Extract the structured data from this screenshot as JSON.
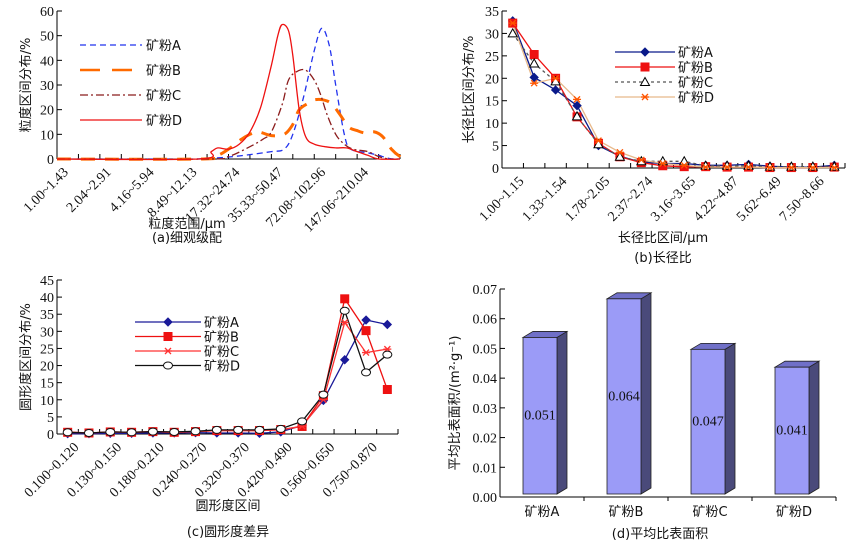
{
  "chart_data": [
    {
      "id": "a",
      "type": "line",
      "title": "",
      "caption": "(a)细观级配",
      "xlabel": "粒度范围/μm",
      "ylabel": "粒度区间分布/%",
      "ylim": [
        0,
        60
      ],
      "yticks": [
        0,
        10,
        20,
        30,
        40,
        50,
        60
      ],
      "x_tick_count": 16,
      "x_tick_labels": [
        "1.00~1.43",
        "2.04~2.91",
        "4.16~5.94",
        "8.49~12.13",
        "17.32~24.74",
        "35.33~50.47",
        "72.08~102.96",
        "147.06~210.04"
      ],
      "x_tick_label_every": 2,
      "legend_position": "top-left",
      "series": [
        {
          "name": "矿粉A",
          "color": "#2233ee",
          "style": "dashed",
          "points": [
            [
              0,
              0
            ],
            [
              6,
              0
            ],
            [
              7,
              0.2
            ],
            [
              8,
              0.8
            ],
            [
              9,
              1.8
            ],
            [
              10,
              3
            ],
            [
              10.6,
              4
            ],
            [
              11,
              10
            ],
            [
              11.5,
              25
            ],
            [
              12,
              44
            ],
            [
              12.35,
              53
            ],
            [
              12.7,
              46
            ],
            [
              13,
              30
            ],
            [
              13.4,
              10
            ],
            [
              13.7,
              4
            ],
            [
              14.5,
              2.5
            ],
            [
              15,
              1.5
            ],
            [
              15.5,
              0.2
            ],
            [
              16,
              0
            ]
          ]
        },
        {
          "name": "矿粉B",
          "color": "#ff6a00",
          "style": "longdash",
          "points": [
            [
              0,
              0
            ],
            [
              6.8,
              0
            ],
            [
              7.5,
              1.5
            ],
            [
              8,
              4
            ],
            [
              8.6,
              8
            ],
            [
              9,
              10
            ],
            [
              9.4,
              11
            ],
            [
              10,
              9.5
            ],
            [
              10.6,
              10
            ],
            [
              11,
              14
            ],
            [
              11.3,
              20
            ],
            [
              11.8,
              23
            ],
            [
              12,
              24
            ],
            [
              12.4,
              24
            ],
            [
              12.8,
              22.5
            ],
            [
              13.2,
              18
            ],
            [
              13.6,
              13
            ],
            [
              14,
              11.5
            ],
            [
              14.4,
              10.5
            ],
            [
              14.8,
              11
            ],
            [
              15.2,
              9
            ],
            [
              15.6,
              4
            ],
            [
              16,
              1
            ],
            [
              16.3,
              0
            ]
          ]
        },
        {
          "name": "矿粉C",
          "color": "#8b1c1c",
          "style": "dashdot",
          "points": [
            [
              0,
              0
            ],
            [
              7,
              0
            ],
            [
              8,
              1
            ],
            [
              9,
              5
            ],
            [
              9.6,
              8
            ],
            [
              10,
              11
            ],
            [
              10.5,
              22
            ],
            [
              10.8,
              32
            ],
            [
              11.2,
              35.5
            ],
            [
              11.6,
              36
            ],
            [
              12,
              32
            ],
            [
              12.3,
              26
            ],
            [
              12.6,
              18
            ],
            [
              13,
              10
            ],
            [
              13.4,
              6
            ],
            [
              13.8,
              4
            ],
            [
              14.5,
              3
            ],
            [
              15,
              1
            ],
            [
              15.5,
              0
            ],
            [
              16,
              0
            ]
          ]
        },
        {
          "name": "矿粉D",
          "color": "#ee1111",
          "style": "solid",
          "points": [
            [
              0,
              0
            ],
            [
              6.6,
              0
            ],
            [
              7.2,
              3
            ],
            [
              7.5,
              4.5
            ],
            [
              8,
              4
            ],
            [
              8.5,
              6
            ],
            [
              9,
              11
            ],
            [
              9.5,
              21
            ],
            [
              10,
              38
            ],
            [
              10.3,
              50
            ],
            [
              10.5,
              54.5
            ],
            [
              10.8,
              52
            ],
            [
              11,
              42
            ],
            [
              11.3,
              20
            ],
            [
              11.6,
              9
            ],
            [
              12,
              6
            ],
            [
              12.5,
              5
            ],
            [
              13,
              4.5
            ],
            [
              13.5,
              4.5
            ],
            [
              14,
              3
            ],
            [
              14.5,
              1.5
            ],
            [
              15,
              0
            ],
            [
              16,
              0
            ]
          ]
        }
      ]
    },
    {
      "id": "b",
      "type": "line",
      "title": "",
      "caption": "(b)长径比",
      "xlabel": "长径比区间/μm",
      "ylabel": "长径比区间分布/%",
      "ylim": [
        0,
        35
      ],
      "yticks": [
        0,
        5,
        10,
        15,
        20,
        25,
        30,
        35
      ],
      "x_tick_labels": [
        "1.00~1.15",
        "1.33~1.54",
        "1.78~2.05",
        "2.37~2.74",
        "3.16~3.65",
        "4.22~4.87",
        "5.62~6.49",
        "7.50~8.66"
      ],
      "x_tick_label_every": 2,
      "legend_position": "top-right",
      "series": [
        {
          "name": "矿粉A",
          "color": "#0a1a8a",
          "marker": "diamond",
          "dash": "",
          "values": [
            32.8,
            20.2,
            17.4,
            13.9,
            5.0,
            2.6,
            1.3,
            1.0,
            1.0,
            0.6,
            0.6,
            0.8,
            0.4,
            0.2,
            0.2,
            0.6
          ]
        },
        {
          "name": "矿粉B",
          "color": "#ee1111",
          "marker": "square",
          "dash": "",
          "values": [
            32.3,
            25.3,
            20.0,
            11.4,
            5.5,
            2.5,
            1.2,
            0.5,
            0.3,
            0.3,
            0.2,
            0.2,
            0.1,
            0.1,
            0.1,
            0.2
          ]
        },
        {
          "name": "矿粉C",
          "color": "#555555",
          "marker": "triangle",
          "dash": "3,3",
          "values": [
            30.0,
            23.3,
            19.3,
            11.5,
            5.3,
            2.5,
            1.5,
            1.5,
            1.5,
            0.5,
            0.5,
            0.5,
            0.3,
            0.3,
            0.3,
            0.3
          ]
        },
        {
          "name": "矿粉D",
          "color": "#e8b98a",
          "marker": "star",
          "markerColor": "#ff5500",
          "dash": "",
          "values": [
            32.3,
            18.9,
            20.0,
            15.3,
            6.1,
            3.5,
            1.8,
            1.0,
            0.6,
            0.2,
            0.2,
            0.2,
            0.1,
            0.1,
            0.1,
            0.1
          ]
        }
      ]
    },
    {
      "id": "c",
      "type": "line",
      "title": "",
      "caption": "(c)圆形度差异",
      "xlabel": "圆形度区间",
      "ylabel": "圆形度区间分布/%",
      "ylim": [
        0,
        45
      ],
      "yticks": [
        0,
        5,
        10,
        15,
        20,
        25,
        30,
        35,
        40,
        45
      ],
      "x_tick_labels": [
        "0.100~0.120",
        "0.130~0.150",
        "0.180~0.210",
        "0.240~0.270",
        "0.320~0.370",
        "0.420~0.490",
        "0.560~0.650",
        "0.750~0.870"
      ],
      "x_tick_label_every": 2,
      "legend_position": "top-center",
      "series": [
        {
          "name": "矿粉A",
          "color": "#1a1a99",
          "marker": "diamond",
          "values": [
            0.1,
            0.1,
            0.2,
            0.2,
            0.3,
            0.3,
            0.4,
            0.3,
            0.3,
            0.2,
            0.6,
            2.5,
            9.8,
            21.7,
            33.3,
            32.0
          ]
        },
        {
          "name": "矿粉B",
          "color": "#ee1111",
          "marker": "square",
          "values": [
            0.5,
            0.3,
            0.6,
            0.5,
            0.7,
            0.5,
            0.7,
            1.0,
            1.0,
            1.0,
            1.3,
            2.2,
            11.2,
            39.5,
            30.2,
            13.0
          ]
        },
        {
          "name": "矿粉C",
          "color": "#ff3333",
          "marker": "star",
          "values": [
            0.6,
            0.3,
            0.6,
            0.5,
            0.7,
            0.5,
            0.7,
            1.0,
            1.0,
            1.0,
            1.2,
            2.3,
            10.0,
            32.6,
            23.8,
            24.8
          ]
        },
        {
          "name": "矿粉D",
          "color": "#111111",
          "marker": "circle",
          "values": [
            0.5,
            0.3,
            0.6,
            0.5,
            0.7,
            0.6,
            0.8,
            1.2,
            1.2,
            1.2,
            1.5,
            3.7,
            11.5,
            36.0,
            18.0,
            23.2
          ]
        }
      ]
    },
    {
      "id": "d",
      "type": "bar",
      "title": "",
      "caption": "(d)平均比表面积",
      "xlabel": "",
      "ylabel": "平均比表面积/(m²·g⁻¹)",
      "ylim": [
        0,
        0.07
      ],
      "yticks": [
        "0.00",
        "0.01",
        "0.02",
        "0.03",
        "0.04",
        "0.05",
        "0.06",
        "0.07"
      ],
      "categories": [
        "矿粉A",
        "矿粉B",
        "矿粉C",
        "矿粉D"
      ],
      "values": [
        0.051,
        0.064,
        0.047,
        0.041
      ],
      "data_labels": [
        "0.051",
        "0.064",
        "0.047",
        "0.041"
      ],
      "bar_front_color": "#9b9bf7",
      "bar_side_color": "#4a4a7a",
      "bar_top_color": "#7070c8"
    }
  ]
}
